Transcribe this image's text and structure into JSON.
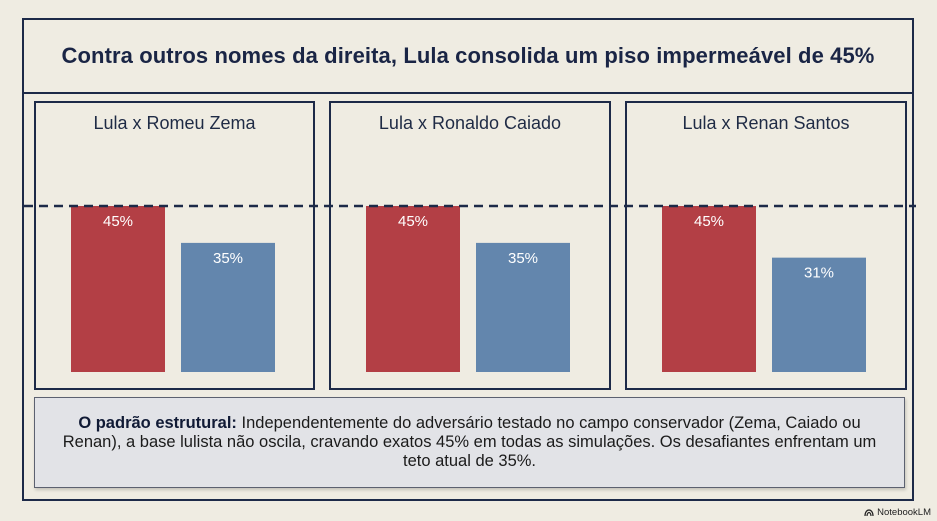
{
  "title": "Contra outros nomes da direita, Lula consolida um piso impermeável de 45%",
  "chart_data": [
    {
      "type": "bar",
      "title": "Lula x Romeu Zema",
      "categories": [
        "Lula",
        "Romeu Zema"
      ],
      "values": [
        45,
        35
      ],
      "labels": [
        "45%",
        "35%"
      ],
      "colors": [
        "#b33f45",
        "#6386ad"
      ],
      "reference_line": 45,
      "ylim": [
        0,
        50
      ]
    },
    {
      "type": "bar",
      "title": "Lula x Ronaldo Caiado",
      "categories": [
        "Lula",
        "Ronaldo Caiado"
      ],
      "values": [
        45,
        35
      ],
      "labels": [
        "45%",
        "35%"
      ],
      "colors": [
        "#b33f45",
        "#6386ad"
      ],
      "reference_line": 45,
      "ylim": [
        0,
        50
      ]
    },
    {
      "type": "bar",
      "title": "Lula x Renan Santos",
      "categories": [
        "Lula",
        "Renan Santos"
      ],
      "values": [
        45,
        31
      ],
      "labels": [
        "45%",
        "31%"
      ],
      "colors": [
        "#b33f45",
        "#6386ad"
      ],
      "reference_line": 45,
      "ylim": [
        0,
        50
      ]
    }
  ],
  "note": {
    "bold": "O padrão estrutural:",
    "text": " Independentemente do adversário testado no campo conservador (Zema, Caiado ou Renan), a base lulista não oscila, cravando exatos 45% em todas as simulações. Os desafiantes enfrentam um teto atual de 35%."
  },
  "logo": {
    "text": "NotebookLM",
    "icon": "notebooklm-icon"
  }
}
